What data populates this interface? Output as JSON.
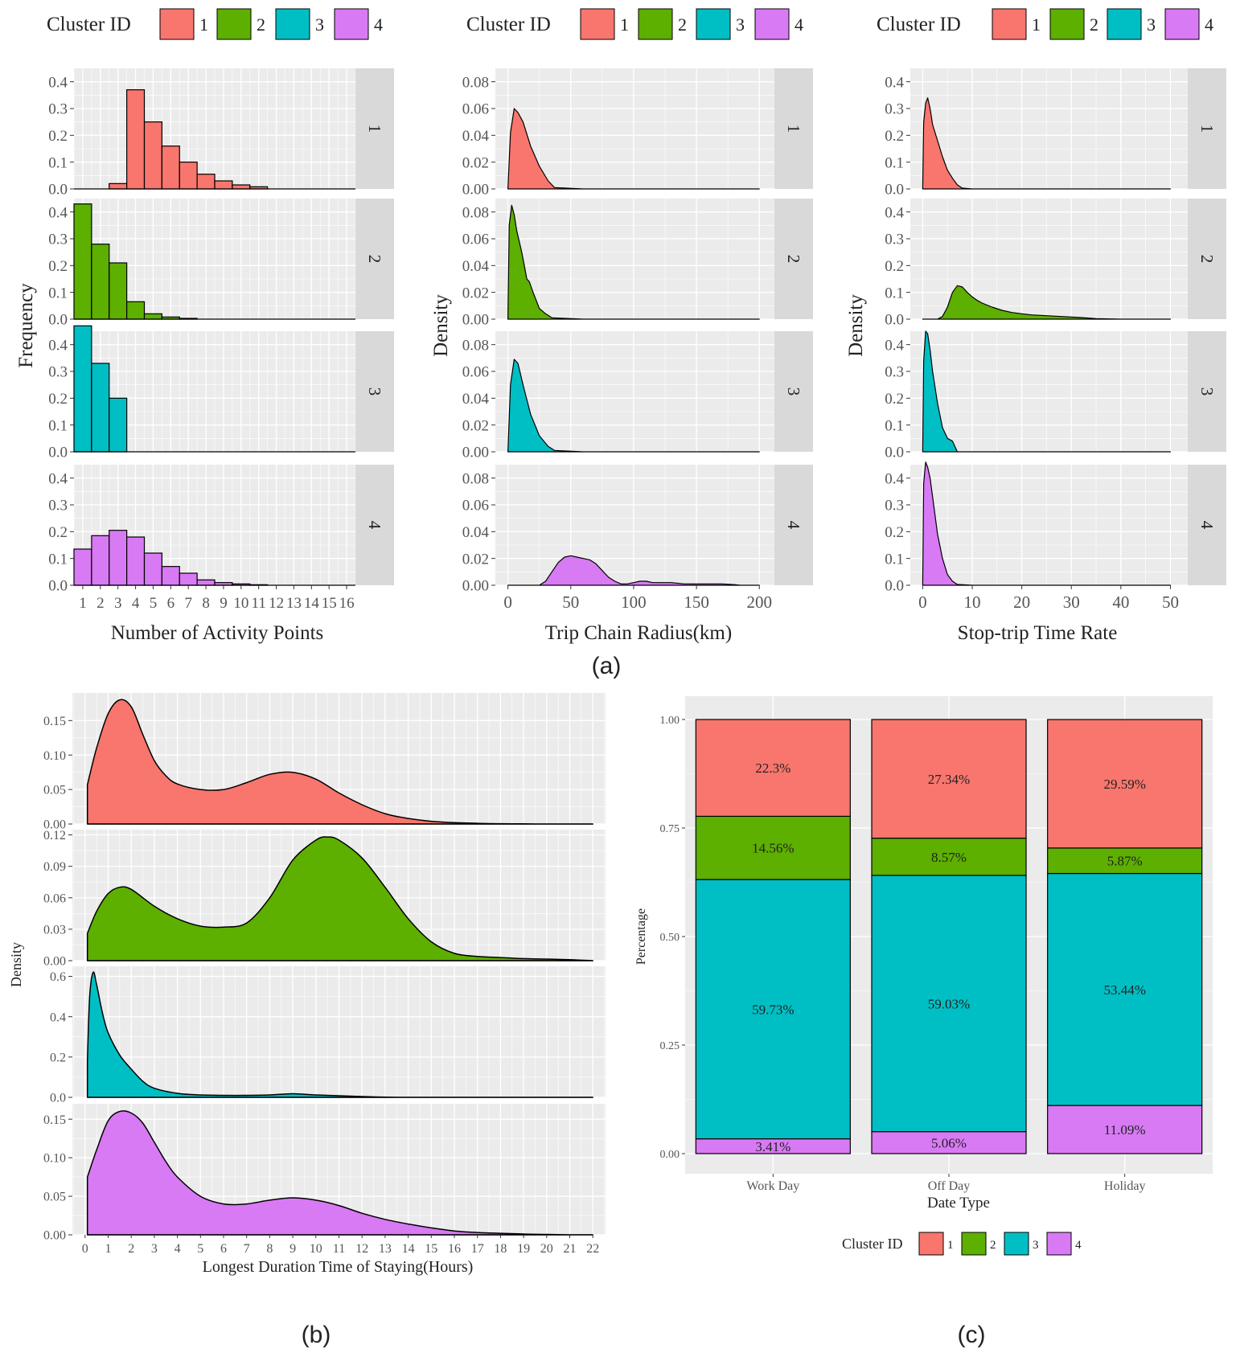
{
  "colors": {
    "c1": "#F8766D",
    "c2": "#5DAF00",
    "c3": "#00BFC4",
    "c4": "#D87AF4",
    "panel": "#EBEBEB",
    "strip": "#D9D9D9",
    "grid": "#FFFFFF"
  },
  "legend": {
    "title": "Cluster ID",
    "items": [
      "1",
      "2",
      "3",
      "4"
    ]
  },
  "captions": {
    "a": "(a)",
    "b": "(b)",
    "c": "(c)"
  },
  "strips": [
    "1",
    "2",
    "3",
    "4"
  ],
  "chart_data": [
    {
      "id": "a1",
      "type": "bar",
      "xlabel": "Number of Activity Points",
      "ylabel": "Frequency",
      "xlim": [
        0.5,
        16.5
      ],
      "ylim": [
        0,
        0.45
      ],
      "yticks": [
        "0.0",
        "0.1",
        "0.2",
        "0.3",
        "0.4"
      ],
      "xticks": [
        "1",
        "2",
        "3",
        "4",
        "5",
        "6",
        "7",
        "8",
        "9",
        "10",
        "11",
        "12",
        "13",
        "14",
        "15",
        "16"
      ],
      "categories": [
        1,
        2,
        3,
        4,
        5,
        6,
        7,
        8,
        9,
        10,
        11,
        12,
        13,
        14,
        15,
        16
      ],
      "series": [
        {
          "name": "1",
          "values": [
            0,
            0,
            0.02,
            0.37,
            0.25,
            0.16,
            0.1,
            0.055,
            0.03,
            0.015,
            0.008,
            0,
            0,
            0,
            0,
            0
          ]
        },
        {
          "name": "2",
          "values": [
            0.43,
            0.28,
            0.21,
            0.065,
            0.02,
            0.008,
            0.003,
            0,
            0,
            0,
            0,
            0,
            0,
            0,
            0,
            0
          ]
        },
        {
          "name": "3",
          "values": [
            0.47,
            0.33,
            0.2,
            0,
            0,
            0,
            0,
            0,
            0,
            0,
            0,
            0,
            0,
            0,
            0,
            0
          ]
        },
        {
          "name": "4",
          "values": [
            0.135,
            0.185,
            0.205,
            0.18,
            0.12,
            0.07,
            0.045,
            0.02,
            0.01,
            0.005,
            0.002,
            0,
            0,
            0,
            0,
            0
          ]
        }
      ]
    },
    {
      "id": "a2",
      "type": "area",
      "xlabel": "Trip Chain Radius(km)",
      "ylabel": "Density",
      "xlim": [
        -10,
        212
      ],
      "ylim": [
        0,
        0.09
      ],
      "yticks": [
        "0.00",
        "0.02",
        "0.04",
        "0.06",
        "0.08"
      ],
      "xticks": [
        "0",
        "50",
        "100",
        "150",
        "200"
      ],
      "series": [
        {
          "name": "1",
          "x": [
            0,
            2,
            5,
            8,
            12,
            18,
            25,
            32,
            37,
            60,
            100,
            150,
            200
          ],
          "y": [
            0.0,
            0.042,
            0.06,
            0.057,
            0.05,
            0.032,
            0.017,
            0.006,
            0.001,
            0.0,
            0.0,
            0.0,
            0.0
          ]
        },
        {
          "name": "2",
          "x": [
            0,
            1,
            3,
            5,
            7,
            9,
            11,
            13,
            15,
            17,
            20,
            25,
            30,
            35,
            60,
            100,
            150,
            200
          ],
          "y": [
            0.0,
            0.07,
            0.085,
            0.078,
            0.066,
            0.058,
            0.05,
            0.04,
            0.03,
            0.028,
            0.02,
            0.008,
            0.004,
            0.001,
            0.0,
            0.0,
            0.0,
            0.0
          ]
        },
        {
          "name": "3",
          "x": [
            0,
            2,
            5,
            8,
            12,
            18,
            25,
            32,
            37,
            60,
            100,
            150,
            200
          ],
          "y": [
            0.0,
            0.05,
            0.069,
            0.066,
            0.05,
            0.028,
            0.012,
            0.004,
            0.001,
            0.0,
            0.0,
            0.0,
            0.0
          ]
        },
        {
          "name": "4",
          "x": [
            0,
            25,
            30,
            35,
            40,
            45,
            50,
            55,
            60,
            65,
            70,
            75,
            80,
            85,
            90,
            95,
            100,
            105,
            110,
            115,
            120,
            125,
            130,
            140,
            150,
            160,
            170,
            180,
            185,
            200
          ],
          "y": [
            0.0,
            0.0,
            0.003,
            0.01,
            0.017,
            0.021,
            0.022,
            0.021,
            0.02,
            0.019,
            0.016,
            0.011,
            0.006,
            0.003,
            0.001,
            0.001,
            0.002,
            0.003,
            0.003,
            0.002,
            0.002,
            0.002,
            0.002,
            0.001,
            0.001,
            0.001,
            0.001,
            0.0005,
            0.0,
            0.0
          ]
        }
      ]
    },
    {
      "id": "a3",
      "type": "area",
      "xlabel": "Stop-trip Time Rate",
      "ylabel": "Density",
      "xlim": [
        -2.5,
        53.5
      ],
      "ylim": [
        0,
        0.45
      ],
      "yticks": [
        "0.0",
        "0.1",
        "0.2",
        "0.3",
        "0.4"
      ],
      "xticks": [
        "0",
        "10",
        "20",
        "30",
        "40",
        "50"
      ],
      "series": [
        {
          "name": "1",
          "x": [
            0,
            0.2,
            0.6,
            1,
            1.5,
            2,
            3,
            4,
            5,
            6,
            7,
            8,
            10,
            20,
            30,
            40,
            50
          ],
          "y": [
            0.0,
            0.25,
            0.32,
            0.34,
            0.3,
            0.24,
            0.18,
            0.12,
            0.07,
            0.04,
            0.015,
            0.003,
            0.0,
            0.0,
            0.0,
            0.0,
            0.0
          ]
        },
        {
          "name": "2",
          "x": [
            0,
            3,
            4,
            5,
            6,
            7,
            8,
            9,
            10,
            11,
            12,
            14,
            16,
            18,
            20,
            22,
            25,
            28,
            32,
            35,
            40,
            50
          ],
          "y": [
            0.0,
            0.0,
            0.01,
            0.045,
            0.1,
            0.125,
            0.12,
            0.1,
            0.083,
            0.07,
            0.06,
            0.045,
            0.033,
            0.025,
            0.02,
            0.016,
            0.013,
            0.01,
            0.006,
            0.002,
            0.0,
            0.0
          ]
        },
        {
          "name": "3",
          "x": [
            0,
            0.2,
            0.6,
            1,
            1.5,
            2,
            2.5,
            3,
            4,
            5,
            6,
            7,
            10,
            20,
            30,
            40,
            50
          ],
          "y": [
            0.0,
            0.34,
            0.45,
            0.44,
            0.38,
            0.3,
            0.24,
            0.18,
            0.09,
            0.05,
            0.04,
            0.0,
            0.0,
            0.0,
            0.0,
            0.0,
            0.0
          ]
        },
        {
          "name": "4",
          "x": [
            0,
            0.2,
            0.6,
            1,
            1.5,
            2,
            2.5,
            3,
            4,
            5,
            6,
            7,
            10,
            20,
            30,
            40,
            50
          ],
          "y": [
            0.0,
            0.38,
            0.46,
            0.44,
            0.4,
            0.33,
            0.26,
            0.19,
            0.1,
            0.04,
            0.015,
            0.003,
            0.0,
            0.0,
            0.0,
            0.0,
            0.0
          ]
        }
      ]
    },
    {
      "id": "b",
      "type": "area",
      "xlabel": "Longest Duration Time of Staying(Hours)",
      "ylabel": "Density",
      "xlim": [
        -0.55,
        22.55
      ],
      "xticks": [
        "0",
        "1",
        "2",
        "3",
        "4",
        "5",
        "6",
        "7",
        "8",
        "9",
        "10",
        "11",
        "12",
        "13",
        "14",
        "15",
        "16",
        "17",
        "18",
        "19",
        "20",
        "21",
        "22"
      ],
      "series": [
        {
          "name": "1",
          "ylim": [
            0,
            0.19
          ],
          "yticks": [
            "0.00",
            "0.05",
            "0.10",
            "0.15"
          ],
          "x": [
            0.1,
            0.5,
            1,
            1.5,
            2,
            2.5,
            3,
            3.5,
            4,
            5,
            6,
            7,
            8,
            9,
            10,
            11,
            12,
            13,
            14,
            15,
            16,
            17,
            18,
            19,
            20,
            21,
            22
          ],
          "y": [
            0.057,
            0.11,
            0.16,
            0.18,
            0.17,
            0.13,
            0.092,
            0.07,
            0.058,
            0.05,
            0.05,
            0.06,
            0.072,
            0.075,
            0.065,
            0.045,
            0.028,
            0.015,
            0.008,
            0.004,
            0.002,
            0.001,
            0.0005,
            0.0002,
            0.0,
            0.0,
            0.0
          ]
        },
        {
          "name": "2",
          "ylim": [
            0,
            0.125
          ],
          "yticks": [
            "0.00",
            "0.03",
            "0.06",
            "0.09",
            "0.12"
          ],
          "x": [
            0.1,
            0.5,
            1,
            1.5,
            2,
            3,
            4,
            5,
            6,
            7,
            8,
            9,
            10,
            10.5,
            11,
            12,
            13,
            14,
            15,
            16,
            17,
            18,
            19,
            20,
            21,
            22
          ],
          "y": [
            0.026,
            0.047,
            0.064,
            0.07,
            0.068,
            0.052,
            0.04,
            0.033,
            0.032,
            0.036,
            0.06,
            0.096,
            0.115,
            0.118,
            0.115,
            0.098,
            0.07,
            0.04,
            0.018,
            0.007,
            0.004,
            0.003,
            0.002,
            0.0015,
            0.001,
            0.0
          ]
        },
        {
          "name": "3",
          "ylim": [
            0,
            0.65
          ],
          "yticks": [
            "0.0",
            "0.2",
            "0.4",
            "0.6"
          ],
          "x": [
            0.1,
            0.2,
            0.35,
            0.5,
            0.75,
            1,
            1.5,
            2,
            2.5,
            3,
            4,
            5,
            6,
            7,
            8,
            9,
            10,
            11,
            12,
            13,
            14,
            16,
            18,
            20,
            22
          ],
          "y": [
            0.18,
            0.5,
            0.62,
            0.56,
            0.42,
            0.32,
            0.21,
            0.14,
            0.08,
            0.045,
            0.02,
            0.012,
            0.01,
            0.01,
            0.012,
            0.018,
            0.012,
            0.008,
            0.004,
            0.001,
            0.0,
            0.0,
            0.0,
            0.0,
            0.0
          ]
        },
        {
          "name": "4",
          "ylim": [
            0,
            0.17
          ],
          "yticks": [
            "0.00",
            "0.05",
            "0.10",
            "0.15"
          ],
          "x": [
            0.1,
            0.5,
            1,
            1.5,
            2,
            2.5,
            3,
            3.5,
            4,
            5,
            6,
            7,
            8,
            9,
            10,
            11,
            12,
            13,
            14,
            15,
            16,
            17,
            18,
            19,
            20,
            21,
            22
          ],
          "y": [
            0.075,
            0.11,
            0.148,
            0.16,
            0.158,
            0.145,
            0.12,
            0.095,
            0.075,
            0.05,
            0.04,
            0.04,
            0.045,
            0.048,
            0.045,
            0.038,
            0.028,
            0.02,
            0.014,
            0.009,
            0.005,
            0.003,
            0.002,
            0.001,
            0.0005,
            0.0,
            0.0
          ]
        }
      ]
    },
    {
      "id": "c",
      "type": "bar",
      "stacked": true,
      "xlabel": "Date Type",
      "ylabel": "Percentage",
      "ylim": [
        0,
        1
      ],
      "yticks": [
        "0.00",
        "0.25",
        "0.50",
        "0.75",
        "1.00"
      ],
      "categories": [
        "Work Day",
        "Off Day",
        "Holiday"
      ],
      "series": [
        {
          "name": "4",
          "values": [
            0.0341,
            0.0506,
            0.1109
          ],
          "labels": [
            "3.41%",
            "5.06%",
            "11.09%"
          ]
        },
        {
          "name": "3",
          "values": [
            0.5973,
            0.5903,
            0.5344
          ],
          "labels": [
            "59.73%",
            "59.03%",
            "53.44%"
          ]
        },
        {
          "name": "2",
          "values": [
            0.1456,
            0.0857,
            0.0587
          ],
          "labels": [
            "14.56%",
            "8.57%",
            "5.87%"
          ]
        },
        {
          "name": "1",
          "values": [
            0.223,
            0.2734,
            0.2959
          ],
          "labels": [
            "22.3%",
            "27.34%",
            "29.59%"
          ]
        }
      ]
    }
  ]
}
